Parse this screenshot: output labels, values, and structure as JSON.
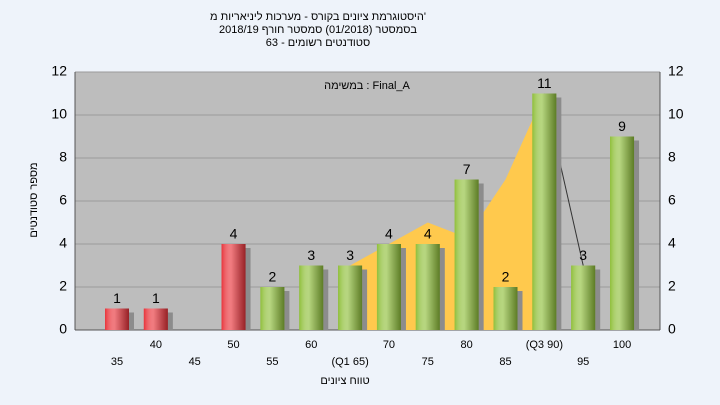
{
  "chart_data": {
    "type": "bar",
    "title": "היסטוגרמת ציונים בקורס - מערכות ליניאריות מ'",
    "subtitle": "בסמסטר (01/2018) סמסטר חורף 2018/19",
    "subtitle2": "סטודנטים רשומים - 63",
    "annotation": "במשימה : Final_A",
    "x_label": "טווח ציונים",
    "y_label": "מספר סטודנטים",
    "categories": [
      "35",
      "40",
      "45",
      "50",
      "55",
      "60",
      "(Q1 65)",
      "70",
      "75",
      "80",
      "85",
      "(Q3 90)",
      "95",
      "100"
    ],
    "series": [
      {
        "type": "area",
        "color": "#ffc94d",
        "values": [
          null,
          null,
          null,
          null,
          null,
          null,
          3,
          4,
          5,
          4.3,
          7,
          11,
          null,
          null
        ]
      },
      {
        "type": "line",
        "color": "#333333",
        "values": [
          null,
          null,
          null,
          null,
          null,
          null,
          null,
          null,
          null,
          null,
          null,
          11,
          3,
          null
        ]
      },
      {
        "type": "bar",
        "colors": [
          "#e8333a",
          "#e8333a",
          "#e8333a",
          "#e8333a",
          "#8fbf3a",
          "#8fbf3a",
          "#8fbf3a",
          "#8fbf3a",
          "#8fbf3a",
          "#8fbf3a",
          "#8fbf3a",
          "#8fbf3a",
          "#8fbf3a",
          "#8fbf3a"
        ],
        "values": [
          1,
          1,
          null,
          4,
          2,
          3,
          3,
          4,
          4,
          7,
          2,
          11,
          3,
          9
        ]
      }
    ],
    "ylim": [
      0,
      12
    ],
    "yticks": [
      0,
      2,
      4,
      6,
      8,
      10,
      12
    ],
    "grid": true
  }
}
